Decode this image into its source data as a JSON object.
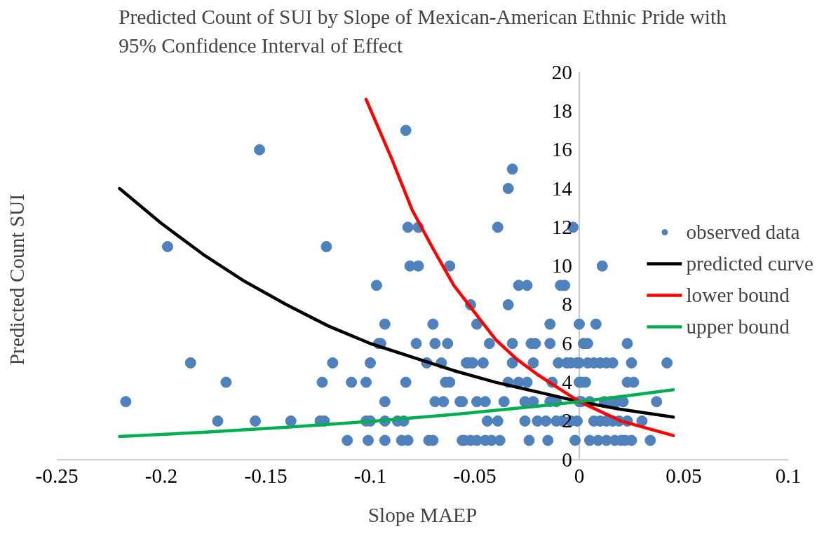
{
  "chart_data": {
    "type": "scatter",
    "title": "Predicted Count of SUI by Slope of Mexican-American Ethnic Pride with 95% Confidence Interval of Effect",
    "xlabel": "Slope MAEP",
    "ylabel": "Predicted Count SUI",
    "xlim": [
      -0.25,
      0.1
    ],
    "xticks": [
      -0.25,
      -0.2,
      -0.15,
      -0.1,
      -0.05,
      0,
      0.05,
      0.1
    ],
    "ylim": [
      0,
      20
    ],
    "yticks": [
      0,
      2,
      4,
      6,
      8,
      10,
      12,
      14,
      16,
      18,
      20
    ],
    "legend": "right",
    "series": [
      {
        "name": "observed data",
        "color": "#4f81bd",
        "marker": "circle",
        "x": [
          -0.217,
          -0.197,
          -0.186,
          -0.169,
          -0.173,
          -0.155,
          -0.153,
          -0.138,
          -0.124,
          -0.122,
          -0.123,
          -0.121,
          -0.118,
          -0.111,
          -0.109,
          -0.102,
          -0.101,
          -0.102,
          -0.1,
          -0.1,
          -0.097,
          -0.096,
          -0.095,
          -0.093,
          -0.093,
          -0.093,
          -0.093,
          -0.087,
          -0.084,
          -0.083,
          -0.083,
          -0.082,
          -0.077,
          -0.081,
          -0.077,
          -0.085,
          -0.082,
          -0.078,
          -0.073,
          -0.072,
          -0.07,
          -0.07,
          -0.069,
          -0.069,
          -0.066,
          -0.065,
          -0.064,
          -0.063,
          -0.062,
          -0.062,
          -0.057,
          -0.056,
          -0.056,
          -0.055,
          -0.054,
          -0.053,
          -0.052,
          -0.052,
          -0.051,
          -0.049,
          -0.049,
          -0.049,
          -0.046,
          -0.045,
          -0.045,
          -0.044,
          -0.043,
          -0.042,
          -0.039,
          -0.039,
          -0.038,
          -0.036,
          -0.034,
          -0.034,
          -0.034,
          -0.032,
          -0.032,
          -0.032,
          -0.029,
          -0.029,
          -0.026,
          -0.026,
          -0.025,
          -0.025,
          -0.024,
          -0.023,
          -0.022,
          -0.022,
          -0.021,
          -0.02,
          -0.016,
          -0.015,
          -0.014,
          -0.014,
          -0.014,
          -0.013,
          -0.011,
          -0.011,
          -0.01,
          -0.009,
          -0.008,
          -0.007,
          -0.006,
          -0.004,
          -0.004,
          -0.003,
          -0.002,
          -0.001,
          -0.001,
          0.0,
          0.0,
          0.0,
          0.0,
          0.001,
          0.001,
          0.002,
          0.003,
          0.004,
          0.004,
          0.005,
          0.005,
          0.007,
          0.007,
          0.008,
          0.009,
          0.01,
          0.01,
          0.011,
          0.012,
          0.013,
          0.013,
          0.013,
          0.015,
          0.016,
          0.016,
          0.017,
          0.018,
          0.019,
          0.02,
          0.021,
          0.022,
          0.023,
          0.023,
          0.023,
          0.025,
          0.025,
          0.026,
          0.03,
          0.034,
          0.037,
          0.042
        ],
        "values": [
          3,
          11,
          5,
          4,
          2,
          2,
          16,
          2,
          2,
          2,
          4,
          11,
          5,
          1,
          4,
          4,
          1,
          2,
          2,
          5,
          9,
          6,
          6,
          7,
          3,
          2,
          1,
          2,
          2,
          4,
          17,
          12,
          12,
          10,
          10,
          1,
          1,
          6,
          5,
          1,
          7,
          1,
          6,
          3,
          5,
          3,
          4,
          6,
          4,
          10,
          3,
          3,
          1,
          1,
          5,
          5,
          8,
          1,
          5,
          7,
          3,
          1,
          5,
          3,
          1,
          2,
          6,
          1,
          12,
          2,
          1,
          3,
          14,
          8,
          4,
          15,
          6,
          5,
          9,
          4,
          2,
          3,
          9,
          4,
          1,
          6,
          5,
          3,
          6,
          2,
          2,
          1,
          6,
          7,
          3,
          4,
          3,
          2,
          5,
          9,
          2,
          9,
          5,
          2,
          5,
          12,
          1,
          5,
          2,
          7,
          5,
          4,
          3,
          4,
          3,
          6,
          4,
          6,
          5,
          3,
          1,
          5,
          2,
          7,
          1,
          5,
          2,
          10,
          3,
          5,
          2,
          1,
          3,
          5,
          2,
          1,
          3,
          2,
          1,
          3,
          1,
          6,
          4,
          2,
          1,
          5,
          4,
          2,
          1,
          3,
          5
        ]
      },
      {
        "name": "predicted curve",
        "type": "line",
        "color": "#000000",
        "x": [
          -0.22,
          -0.2,
          -0.18,
          -0.16,
          -0.14,
          -0.12,
          -0.1,
          -0.08,
          -0.06,
          -0.04,
          -0.02,
          0,
          0.02,
          0.045
        ],
        "values": [
          14.0,
          12.2,
          10.6,
          9.2,
          8.0,
          6.9,
          6.0,
          5.3,
          4.6,
          4.0,
          3.5,
          3.0,
          2.6,
          2.2
        ]
      },
      {
        "name": "lower bound",
        "type": "line",
        "color": "#ff0000",
        "x": [
          -0.102,
          -0.09,
          -0.08,
          -0.07,
          -0.06,
          -0.05,
          -0.04,
          -0.03,
          -0.02,
          -0.01,
          0,
          0.02,
          0.045
        ],
        "values": [
          18.6,
          15.6,
          12.9,
          10.9,
          9.0,
          7.6,
          6.2,
          5.2,
          4.4,
          3.7,
          3.0,
          2.0,
          1.25
        ]
      },
      {
        "name": "upper bound",
        "type": "line",
        "color": "#00b050",
        "x": [
          -0.22,
          -0.18,
          -0.14,
          -0.1,
          -0.06,
          -0.02,
          0,
          0.02,
          0.045
        ],
        "values": [
          1.2,
          1.42,
          1.68,
          1.98,
          2.34,
          2.76,
          3.0,
          3.26,
          3.61
        ]
      }
    ]
  }
}
